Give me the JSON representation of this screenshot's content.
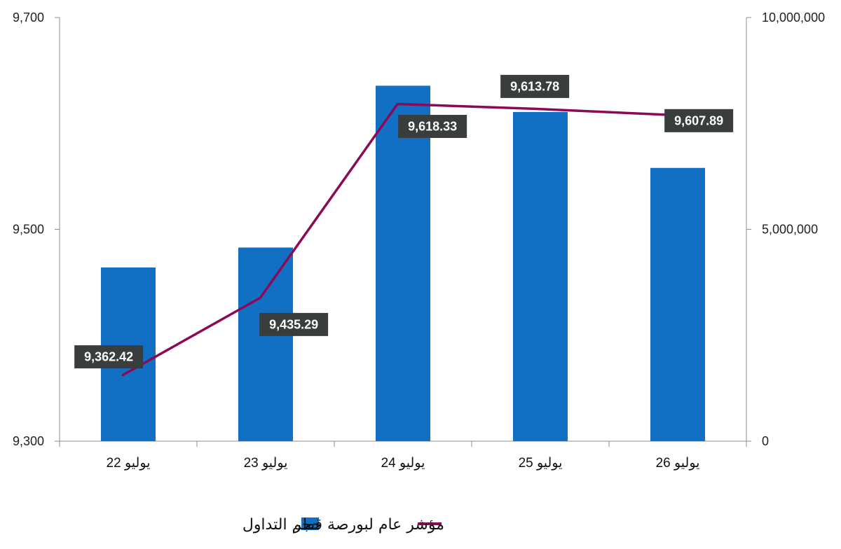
{
  "chart_data": {
    "type": "bar+line",
    "categories": [
      "22 يوليو",
      "23 يوليو",
      "24 يوليو",
      "25 يوليو",
      "26 يوليو"
    ],
    "series": [
      {
        "name": "حجم التداول",
        "type": "bar",
        "axis": "right",
        "color": "#1270C4",
        "values": [
          4100000,
          4570000,
          8390000,
          7770000,
          6450000
        ]
      },
      {
        "name": "مؤشر عام لبورصة قطر",
        "type": "line",
        "axis": "left",
        "color": "#8B0A57",
        "values": [
          9362.42,
          9435.29,
          9618.33,
          9613.78,
          9607.89
        ],
        "data_labels": [
          "9,362.42",
          "9,435.29",
          "9,618.33",
          "9,613.78",
          "9,607.89"
        ]
      }
    ],
    "y_left": {
      "min": 9300,
      "max": 9700,
      "ticks": [
        "9,300",
        "9,500",
        "9,700"
      ]
    },
    "y_right": {
      "min": 0,
      "max": 10000000,
      "ticks": [
        "0",
        "5,000,000",
        "10,000,000"
      ]
    },
    "label_bg_color": "#3A3D3D",
    "grid": false,
    "legend_position": "bottom"
  }
}
